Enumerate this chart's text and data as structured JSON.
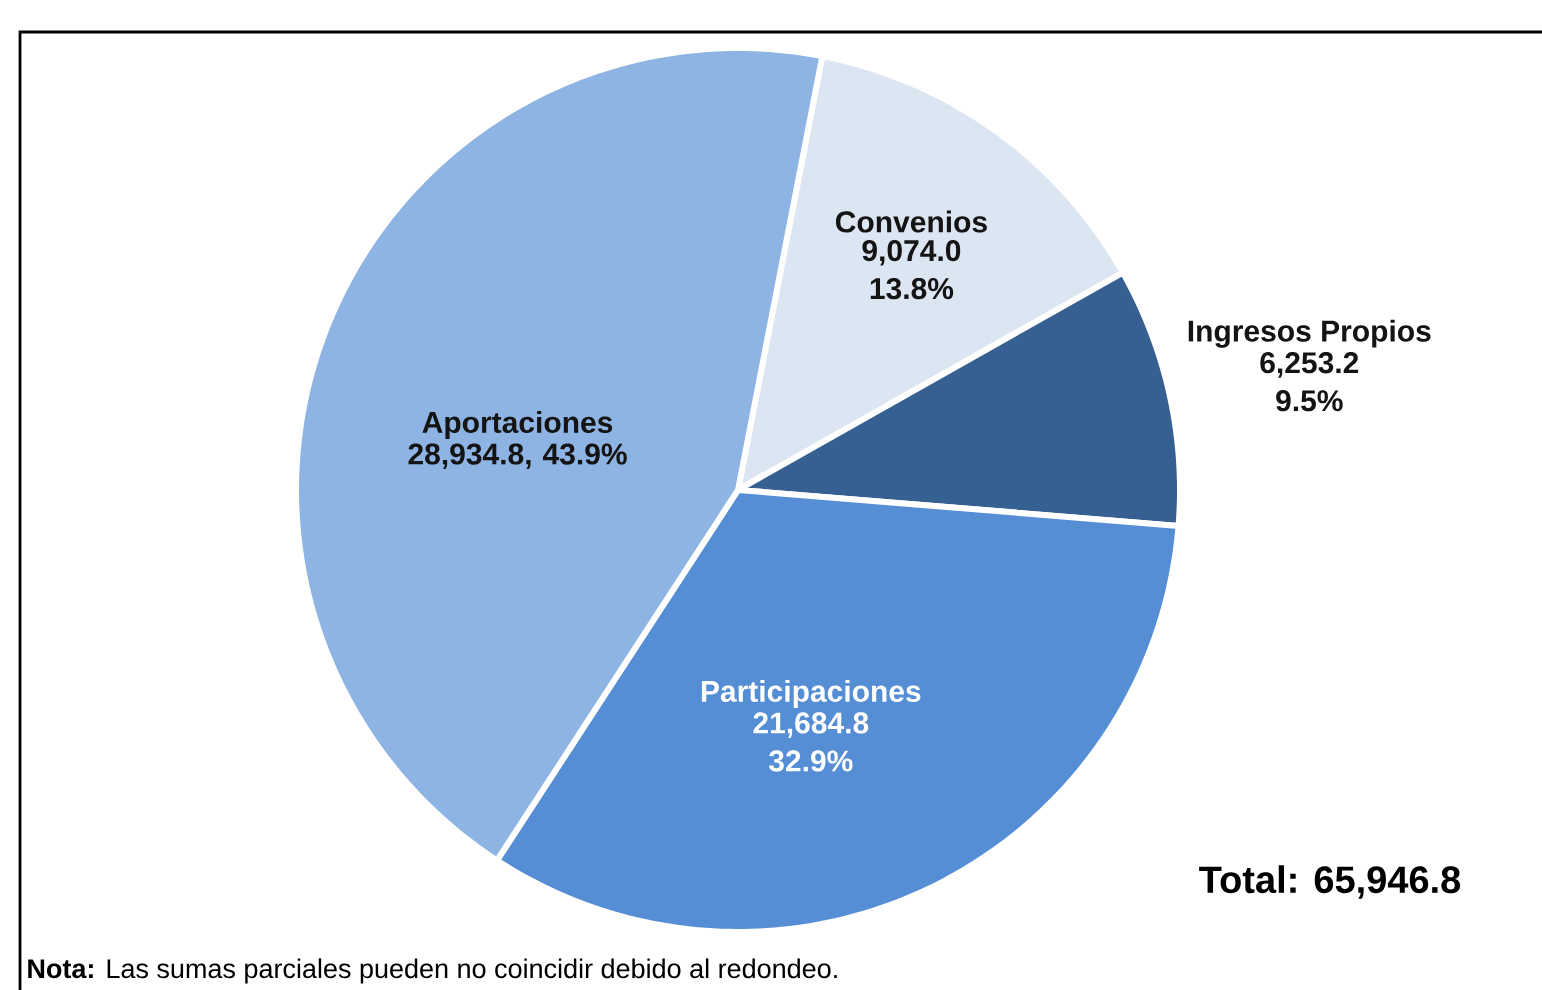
{
  "chart_data": {
    "type": "pie",
    "categories": [
      "Convenios",
      "Ingresos Propios",
      "Participaciones",
      "Aportaciones"
    ],
    "values": [
      9074.0,
      6253.2,
      21684.8,
      28934.8
    ],
    "colors": [
      "#dce6f2",
      "#366092",
      "#558ed5",
      "#8eb4e3"
    ],
    "value_labels": [
      "9,074.0 13.8%",
      "6,253.2 9.5%",
      "21,684.8 32.9%",
      "28,934.8, 43.9%"
    ],
    "annotations": [
      "Total: 65,946.8",
      "**Nota:** Las sumas parciales pueden no coincidir debido al redondeo."
    ]
  }
}
